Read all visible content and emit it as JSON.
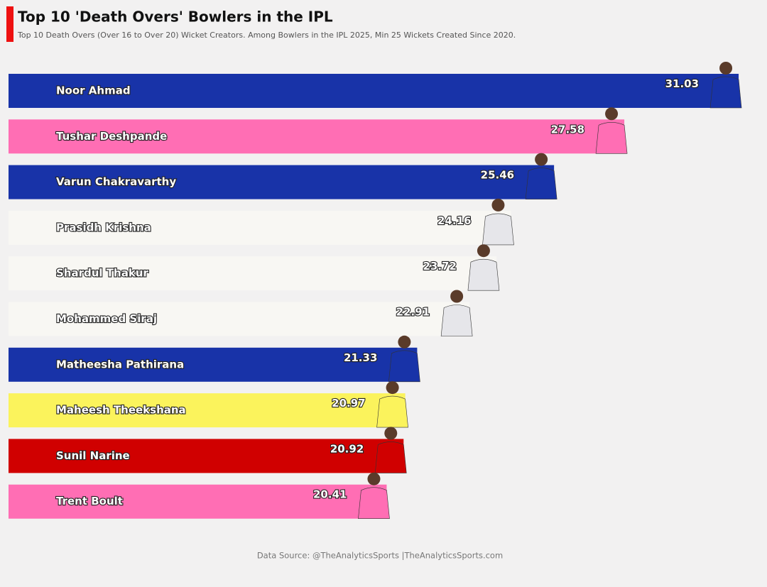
{
  "chart_data": {
    "type": "bar",
    "orientation": "horizontal",
    "title": "Top 10 'Death Overs' Bowlers in the IPL",
    "subtitle": "Top 10 Death Overs (Over 16 to Over 20) Wicket Creators. Among Bowlers in the IPL 2025, Min 25 Wickets Created Since 2020.",
    "source": "Data Source: @TheAnalyticsSports |TheAnalyticsSports.com",
    "categories": [
      "Noor Ahmad",
      "Tushar Deshpande",
      "Varun Chakravarthy",
      "Prasidh Krishna",
      "Shardul Thakur",
      "Mohammed Siraj",
      "Matheesha Pathirana",
      "Maheesh Theekshana",
      "Sunil Narine",
      "Trent Boult"
    ],
    "values": [
      31.03,
      27.58,
      25.46,
      24.16,
      23.72,
      22.91,
      21.33,
      20.97,
      20.92,
      20.41
    ],
    "colors": [
      "#1833a8",
      "#ff6eb4",
      "#1833a8",
      "#f8f7f3",
      "#f8f7f3",
      "#f8f7f3",
      "#1833a8",
      "#fbf35c",
      "#d00000",
      "#ff6eb4"
    ],
    "xlim": [
      9,
      31.5
    ]
  }
}
